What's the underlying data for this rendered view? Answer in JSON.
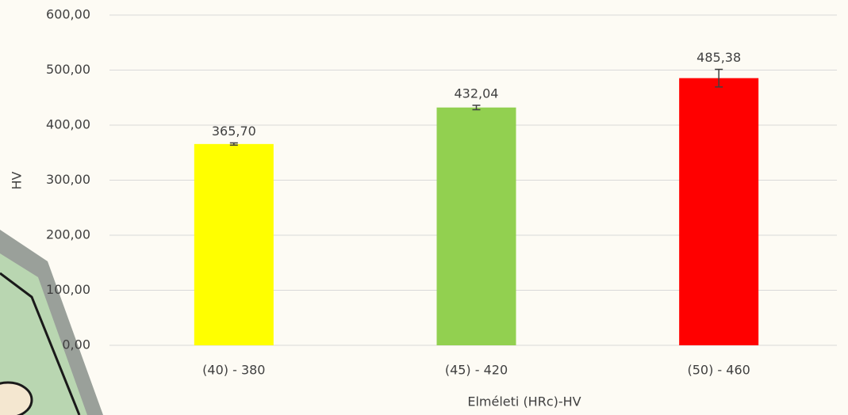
{
  "chart_data": {
    "type": "bar",
    "x_label": "Elméleti (HRc)-HV",
    "y_label": "HV",
    "categories": [
      "(40) - 380",
      "(45) - 420",
      "(50) - 460"
    ],
    "values": [
      365.7,
      432.04,
      485.38
    ],
    "value_labels": [
      "365,70",
      "432,04",
      "485,38"
    ],
    "errors": [
      2,
      4,
      16
    ],
    "colors": [
      "#ffff00",
      "#92d050",
      "#ff0000"
    ],
    "ylim": [
      0,
      600
    ],
    "yticks": [
      {
        "value": 0,
        "label": "0,00"
      },
      {
        "value": 100,
        "label": "100,00"
      },
      {
        "value": 200,
        "label": "200,00"
      },
      {
        "value": 300,
        "label": "300,00"
      },
      {
        "value": 400,
        "label": "400,00"
      },
      {
        "value": 500,
        "label": "500,00"
      },
      {
        "value": 600,
        "label": "600,00"
      }
    ],
    "grid": true
  }
}
